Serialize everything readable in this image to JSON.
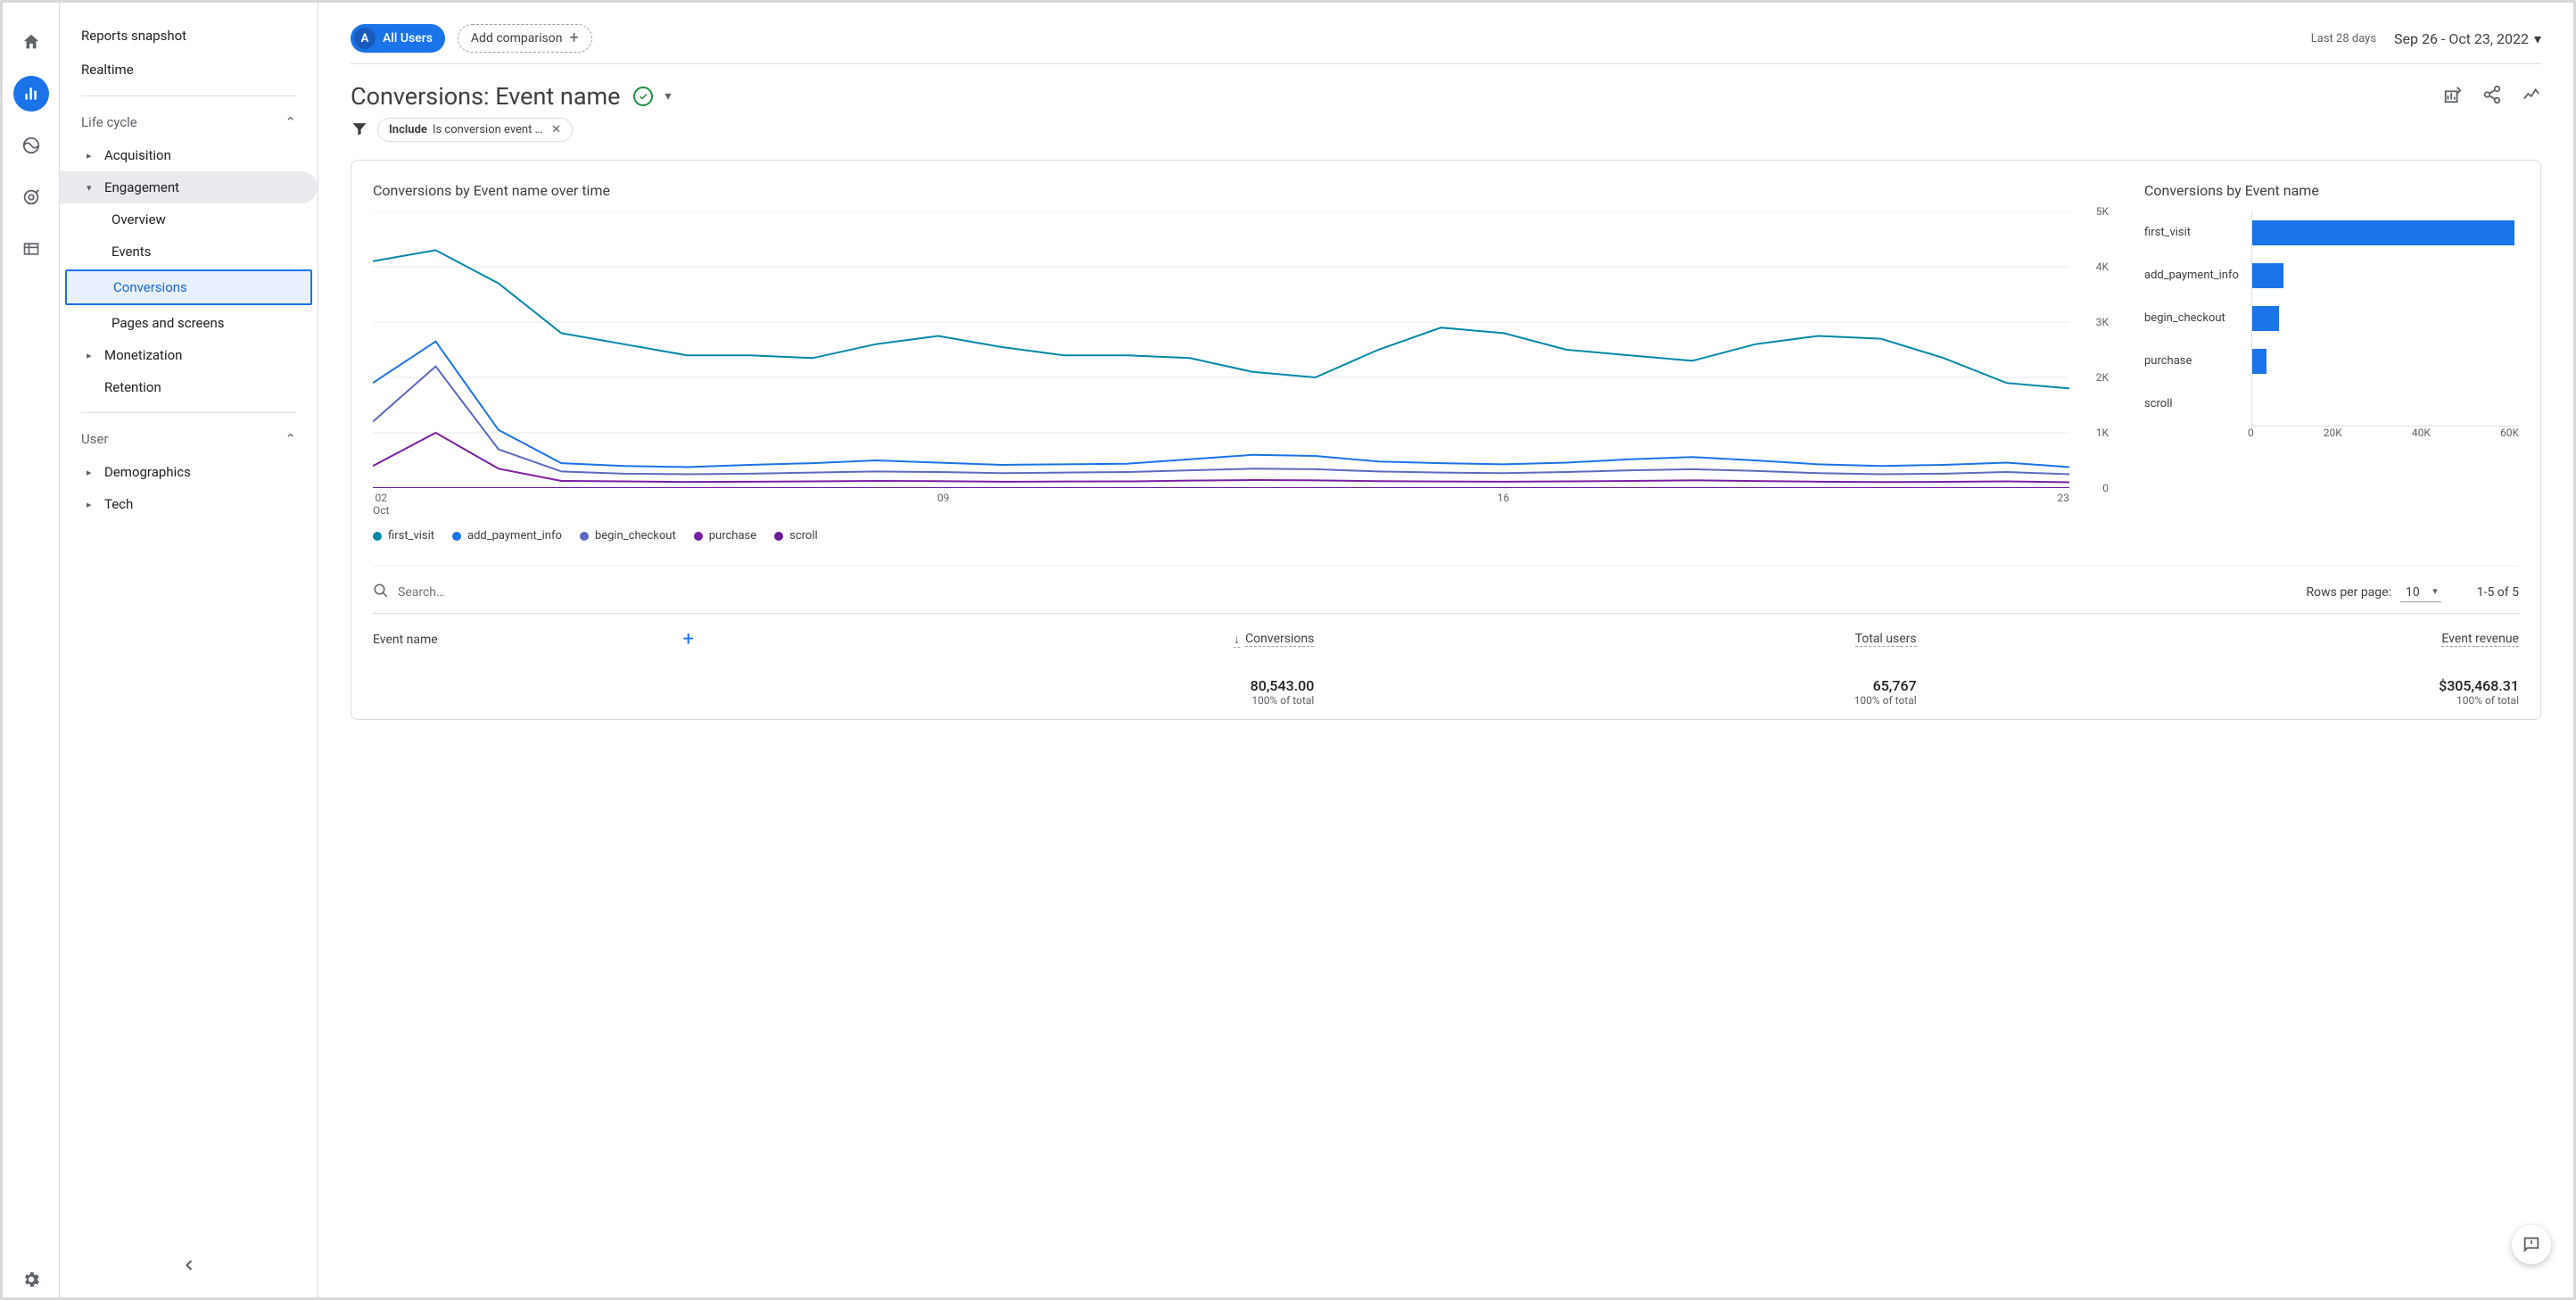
{
  "rail": {
    "items": [
      "home",
      "reports",
      "explore",
      "ads",
      "library"
    ],
    "active": 1
  },
  "sidebar": {
    "top": [
      {
        "label": "Reports snapshot"
      },
      {
        "label": "Realtime"
      }
    ],
    "sections": [
      {
        "label": "Life cycle",
        "expanded": true,
        "items": [
          {
            "label": "Acquisition",
            "expandable": true
          },
          {
            "label": "Engagement",
            "expandable": true,
            "expanded": true,
            "children": [
              {
                "label": "Overview"
              },
              {
                "label": "Events"
              },
              {
                "label": "Conversions",
                "selected": true
              },
              {
                "label": "Pages and screens"
              }
            ]
          },
          {
            "label": "Monetization",
            "expandable": true
          },
          {
            "label": "Retention",
            "expandable": false
          }
        ]
      },
      {
        "label": "User",
        "expanded": true,
        "items": [
          {
            "label": "Demographics",
            "expandable": true
          },
          {
            "label": "Tech",
            "expandable": true
          }
        ]
      }
    ]
  },
  "topbar": {
    "audience_label": "All Users",
    "audience_badge": "A",
    "add_comparison": "Add comparison",
    "date_prefix": "Last 28 days",
    "date_range": "Sep 26 - Oct 23, 2022"
  },
  "page": {
    "title": "Conversions: Event name",
    "filter_prefix": "Include",
    "filter_text": "Is conversion event …"
  },
  "charts": {
    "line": {
      "title": "Conversions by Event name over time",
      "ylim": [
        0,
        5000
      ],
      "yticks": [
        0,
        1000,
        2000,
        3000,
        4000,
        5000
      ],
      "ytick_labels": [
        "0",
        "1K",
        "2K",
        "3K",
        "4K",
        "5K"
      ],
      "xticks": [
        "02",
        "09",
        "16",
        "23"
      ],
      "xsubtitle": "Oct",
      "grid_color": "#e8eaed",
      "series": [
        {
          "name": "first_visit",
          "color": "#0288a7",
          "values": [
            4100,
            4300,
            3700,
            2800,
            2600,
            2400,
            2400,
            2350,
            2600,
            2750,
            2550,
            2400,
            2400,
            2350,
            2100,
            2000,
            2500,
            2900,
            2800,
            2500,
            2400,
            2300,
            2600,
            2750,
            2700,
            2350,
            1900,
            1800
          ]
        },
        {
          "name": "add_payment_info",
          "color": "#1a73e8",
          "values": [
            1900,
            2650,
            1050,
            450,
            400,
            380,
            420,
            450,
            500,
            460,
            420,
            430,
            440,
            520,
            600,
            580,
            480,
            450,
            430,
            460,
            520,
            560,
            500,
            430,
            400,
            420,
            460,
            380
          ]
        },
        {
          "name": "begin_checkout",
          "color": "#5c6bc0",
          "values": [
            1200,
            2200,
            700,
            300,
            260,
            250,
            260,
            280,
            300,
            290,
            270,
            280,
            290,
            320,
            350,
            340,
            300,
            280,
            270,
            290,
            320,
            340,
            310,
            270,
            250,
            260,
            290,
            250
          ]
        },
        {
          "name": "purchase",
          "color": "#7b1fa2",
          "values": [
            400,
            1000,
            350,
            130,
            120,
            110,
            115,
            120,
            130,
            125,
            115,
            118,
            120,
            135,
            145,
            140,
            125,
            118,
            115,
            120,
            130,
            140,
            128,
            115,
            108,
            112,
            120,
            105
          ]
        },
        {
          "name": "scroll",
          "color": "#6a1b9a",
          "values": [
            0,
            0,
            0,
            0,
            0,
            0,
            0,
            0,
            0,
            0,
            0,
            0,
            0,
            0,
            0,
            0,
            0,
            0,
            0,
            0,
            0,
            0,
            0,
            0,
            0,
            0,
            0,
            0
          ]
        }
      ]
    },
    "bar": {
      "title": "Conversions by Event name",
      "xlim": [
        0,
        64000
      ],
      "xticks": [
        0,
        20000,
        40000,
        60000
      ],
      "xtick_labels": [
        "0",
        "20K",
        "40K",
        "60K"
      ],
      "color": "#1a73e8",
      "items": [
        {
          "label": "first_visit",
          "value": 63000
        },
        {
          "label": "add_payment_info",
          "value": 7500
        },
        {
          "label": "begin_checkout",
          "value": 6500
        },
        {
          "label": "purchase",
          "value": 3500
        },
        {
          "label": "scroll",
          "value": 0
        }
      ]
    }
  },
  "table": {
    "search_placeholder": "Search…",
    "rows_per_page_label": "Rows per page:",
    "rows_per_page_value": "10",
    "range_info": "1-5 of 5",
    "columns": [
      "Event name",
      "Conversions",
      "Total users",
      "Event revenue"
    ],
    "sort_col": 1,
    "totals": {
      "conversions": "80,543.00",
      "conversions_sub": "100% of total",
      "users": "65,767",
      "users_sub": "100% of total",
      "revenue": "$305,468.31",
      "revenue_sub": "100% of total"
    }
  }
}
